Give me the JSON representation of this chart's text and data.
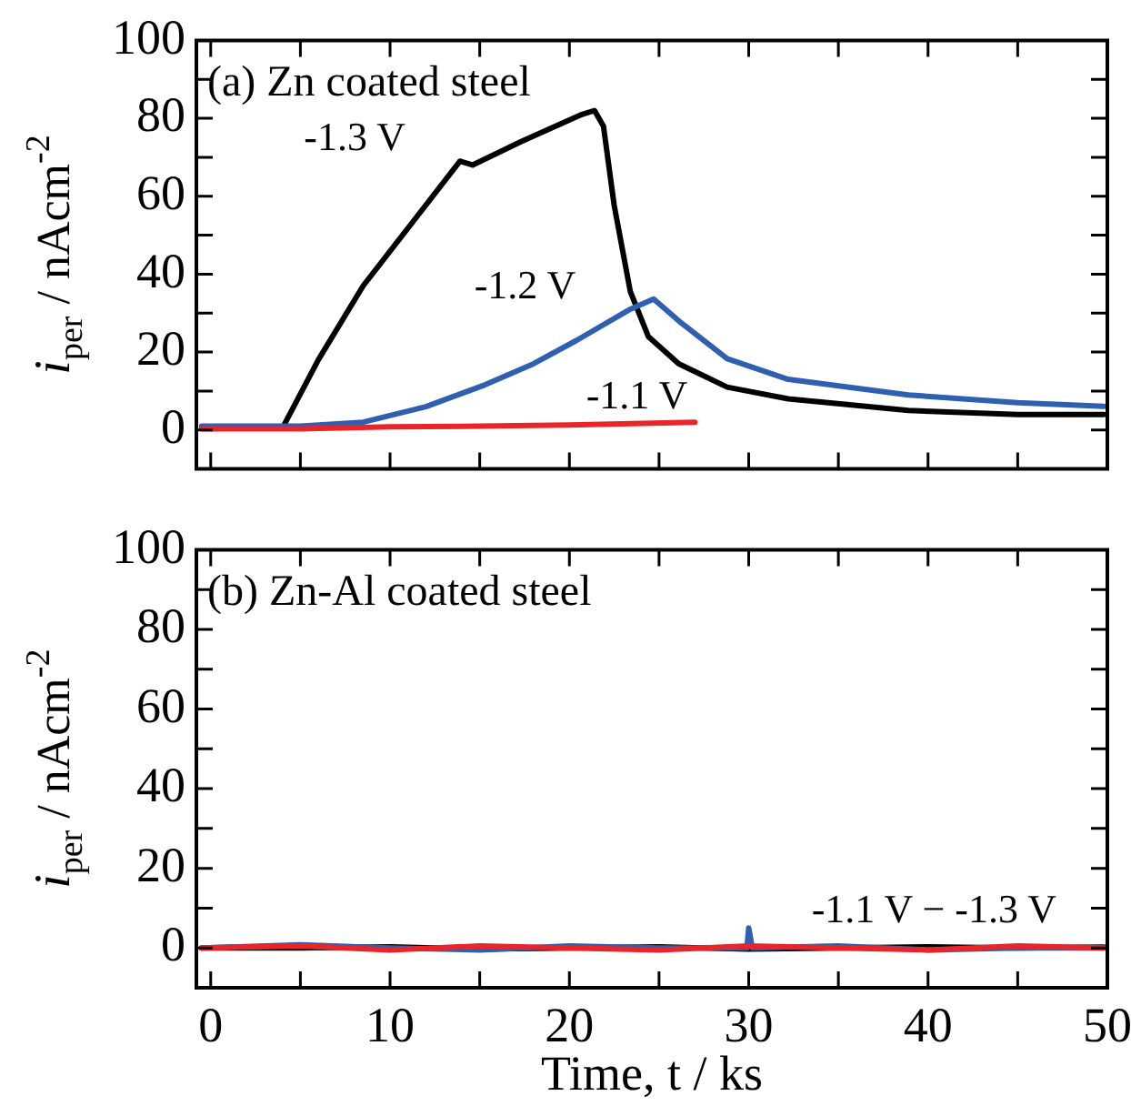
{
  "chart_data": [
    {
      "type": "line",
      "title": "(a) Zn coated steel",
      "ylabel": "i$_{per}$ / nAcm$^{-2}$",
      "xlim": [
        -0.8,
        50
      ],
      "ylim": [
        -10,
        100
      ],
      "xticks": [
        0,
        {
          "value": 5,
          "label": null
        },
        10,
        {
          "value": 15,
          "label": null
        },
        20,
        {
          "value": 25,
          "label": null
        },
        30,
        {
          "value": 35,
          "label": null
        },
        40,
        {
          "value": 45,
          "label": null
        },
        50
      ],
      "yticks": [
        {
          "value": -10,
          "label": null
        },
        0,
        {
          "value": 10,
          "label": null
        },
        20,
        {
          "value": 30,
          "label": null
        },
        40,
        {
          "value": 50,
          "label": null
        },
        60,
        {
          "value": 70,
          "label": null
        },
        80,
        {
          "value": 90,
          "label": null
        },
        100
      ],
      "tick_labels": "y",
      "grid": false,
      "legend": false,
      "marker": "none",
      "line_style": "solid",
      "series": [
        {
          "name": "-1.1 V",
          "color": "#e8262a",
          "x": [
            -0.5,
            5,
            10,
            15,
            20,
            27
          ],
          "values": [
            0.3,
            0.3,
            0.8,
            1,
            1.3,
            2
          ]
        },
        {
          "name": "-1.2 V",
          "color": "#2e5fb0",
          "x": [
            -0.5,
            5,
            8.5,
            12,
            15.3,
            18,
            20.4,
            23.4,
            24.7,
            26.1,
            28.8,
            32.2,
            38.9,
            45,
            49.8
          ],
          "values": [
            1,
            1,
            2,
            6,
            11.6,
            17,
            23,
            31,
            33.6,
            28,
            18.3,
            13,
            9,
            7,
            6.1
          ]
        },
        {
          "name": "-1.3 V",
          "color": "#000000",
          "x": [
            -0.5,
            4,
            6,
            8.5,
            11.2,
            13.9,
            14.6,
            17.3,
            20.7,
            21.4,
            21.9,
            22.5,
            23.4,
            24.4,
            26.1,
            28.8,
            32.2,
            38.9,
            45,
            49.8
          ],
          "values": [
            0.5,
            0.5,
            18,
            37,
            53,
            69,
            68,
            74,
            81,
            82,
            78,
            57.6,
            35.5,
            24,
            17,
            11,
            8,
            5,
            4,
            4
          ]
        }
      ]
    },
    {
      "type": "line",
      "title": "(b) Zn-Al coated steel",
      "xlabel": "Time, t / ks",
      "ylabel": "i$_{per}$ / nAcm$^{-2}$",
      "xlim": [
        -0.8,
        50
      ],
      "ylim": [
        -10,
        100
      ],
      "xticks": [
        0,
        {
          "value": 5,
          "label": null
        },
        10,
        {
          "value": 15,
          "label": null
        },
        20,
        {
          "value": 25,
          "label": null
        },
        30,
        {
          "value": 35,
          "label": null
        },
        40,
        {
          "value": 45,
          "label": null
        },
        50
      ],
      "yticks": [
        {
          "value": -10,
          "label": null
        },
        0,
        {
          "value": 10,
          "label": null
        },
        20,
        {
          "value": 30,
          "label": null
        },
        40,
        {
          "value": 50,
          "label": null
        },
        60,
        {
          "value": 70,
          "label": null
        },
        80,
        {
          "value": 90,
          "label": null
        },
        100
      ],
      "grid": false,
      "legend": false,
      "marker": "none",
      "line_style": "solid",
      "annotations": [
        "-1.1 V − -1.3 V"
      ],
      "series": [
        {
          "color": "#e8262a",
          "x": [
            -0.5,
            5,
            10,
            15,
            20,
            25,
            30,
            35,
            40,
            45,
            49.8
          ],
          "values": [
            0,
            0.5,
            -0.5,
            0.5,
            0,
            -0.5,
            0.5,
            0,
            -0.5,
            0.5,
            0
          ]
        },
        {
          "color": "#2e5fb0",
          "x": [
            -0.5,
            5,
            10,
            15,
            20,
            25,
            29.9,
            30,
            30.2,
            35,
            40,
            45,
            49.8
          ],
          "values": [
            0,
            0.8,
            0,
            -0.5,
            0.5,
            0,
            0,
            5,
            0,
            0.5,
            -0.5,
            0,
            0
          ]
        },
        {
          "color": "#000000",
          "x": [
            -0.5,
            5,
            10,
            15,
            20,
            25,
            30,
            35,
            40,
            45,
            49.8
          ],
          "values": [
            0,
            0,
            0.3,
            -0.3,
            0,
            0.3,
            -0.3,
            0,
            0.3,
            0,
            0.2
          ]
        }
      ]
    }
  ]
}
